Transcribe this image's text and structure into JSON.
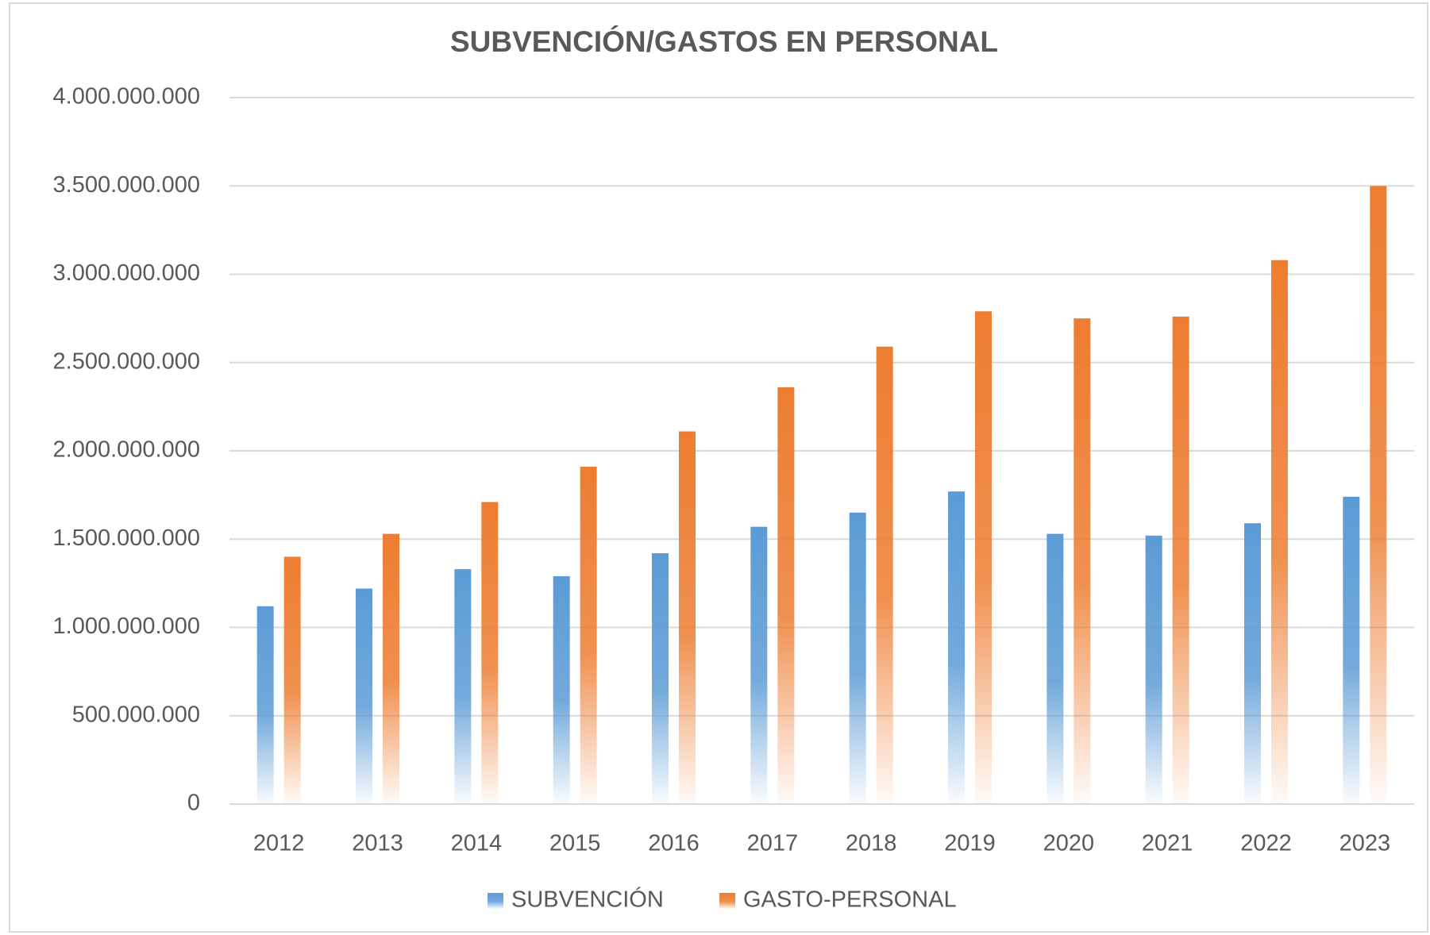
{
  "chart_data": {
    "type": "bar",
    "title": "SUBVENCIÓN/GASTOS EN PERSONAL",
    "categories": [
      "2012",
      "2013",
      "2014",
      "2015",
      "2016",
      "2017",
      "2018",
      "2019",
      "2020",
      "2021",
      "2022",
      "2023"
    ],
    "series": [
      {
        "name": "SUBVENCIÓN",
        "color": "#5b9bd5",
        "values": [
          1120000000,
          1220000000,
          1330000000,
          1290000000,
          1420000000,
          1570000000,
          1650000000,
          1770000000,
          1530000000,
          1520000000,
          1590000000,
          1740000000
        ]
      },
      {
        "name": "GASTO-PERSONAL",
        "color": "#ed7d31",
        "values": [
          1400000000,
          1530000000,
          1710000000,
          1910000000,
          2110000000,
          2360000000,
          2590000000,
          2790000000,
          2750000000,
          2760000000,
          3080000000,
          3500000000
        ]
      }
    ],
    "ylim": [
      0,
      4000000000
    ],
    "yticks": [
      0,
      {
        "value": 500000000,
        "label": "500.000.000"
      },
      {
        "value": 1000000000,
        "label": "1.000.000.000"
      },
      {
        "value": 1500000000,
        "label": "1.500.000.000"
      },
      {
        "value": 2000000000,
        "label": "2.000.000.000"
      },
      {
        "value": 2500000000,
        "label": "2.500.000.000"
      },
      {
        "value": 3000000000,
        "label": "3.000.000.000"
      },
      {
        "value": 3500000000,
        "label": "3.500.000.000"
      },
      {
        "value": 4000000000,
        "label": "4.000.000.000"
      }
    ],
    "grid": true,
    "legend": "bottom"
  }
}
